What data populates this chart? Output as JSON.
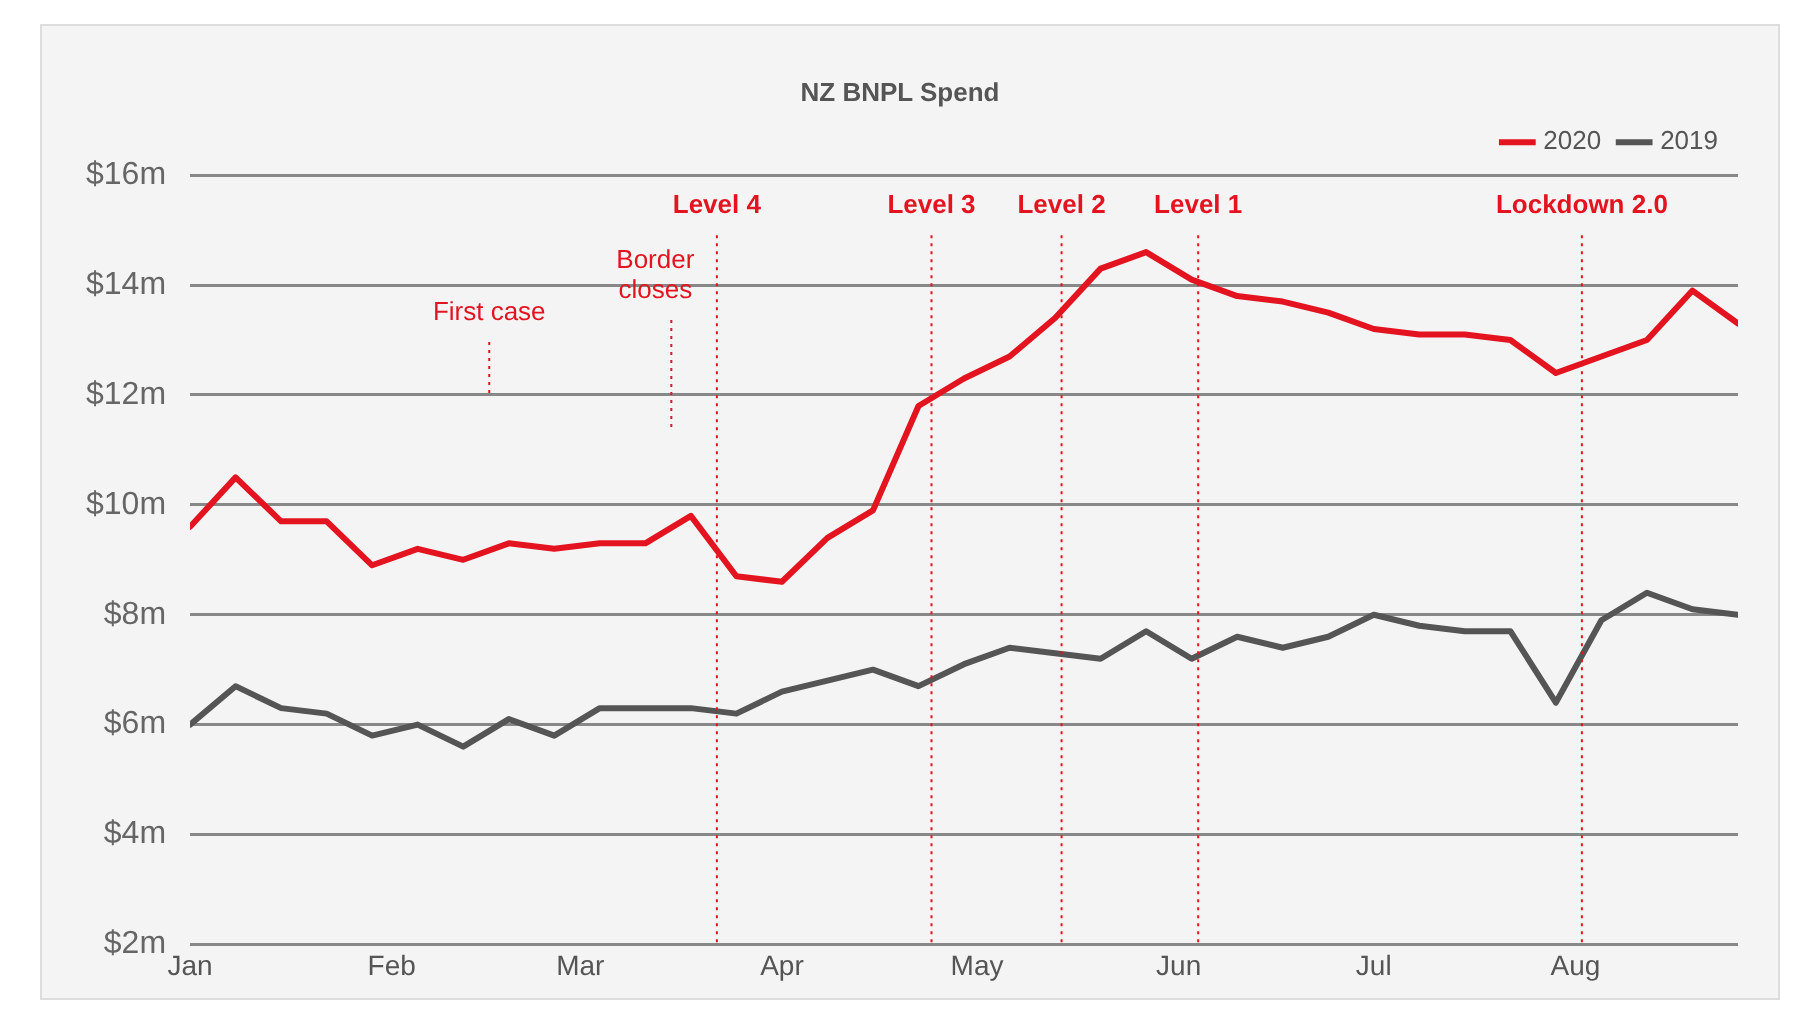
{
  "chart_data": {
    "type": "line",
    "title": "NZ BNPL Spend",
    "x": [
      "--01-01",
      "--01-08",
      "--01-15",
      "--01-22",
      "--01-29",
      "--02-05",
      "--02-12",
      "--02-19",
      "--02-26",
      "--03-04",
      "--03-11",
      "--03-18",
      "--03-25",
      "--04-01",
      "--04-08",
      "--04-15",
      "--04-22",
      "--04-29",
      "--05-06",
      "--05-13",
      "--05-20",
      "--05-27",
      "--06-03",
      "--06-10",
      "--06-17",
      "--06-24",
      "--07-01",
      "--07-08",
      "--07-15",
      "--07-22",
      "--07-29",
      "--08-05",
      "--08-12",
      "--08-19",
      "--08-26"
    ],
    "series": [
      {
        "name": "2020",
        "color": "#e3141f",
        "values": [
          9.6,
          10.5,
          9.7,
          9.7,
          8.9,
          9.2,
          9.0,
          9.3,
          9.2,
          9.3,
          9.3,
          9.8,
          8.7,
          8.6,
          9.4,
          9.9,
          11.8,
          12.3,
          12.7,
          13.4,
          14.3,
          14.6,
          14.1,
          13.8,
          13.7,
          13.5,
          13.2,
          13.1,
          13.1,
          13.0,
          12.4,
          12.7,
          13.0,
          13.9,
          13.3
        ]
      },
      {
        "name": "2019",
        "color": "#555555",
        "values": [
          6.0,
          6.7,
          6.3,
          6.2,
          5.8,
          6.0,
          5.6,
          6.1,
          5.8,
          6.3,
          6.3,
          6.3,
          6.2,
          6.6,
          6.8,
          7.0,
          6.7,
          7.1,
          7.4,
          7.3,
          7.2,
          7.7,
          7.2,
          7.6,
          7.4,
          7.6,
          8.0,
          7.8,
          7.7,
          7.7,
          6.4,
          7.9,
          8.4,
          8.1,
          8.0
        ]
      }
    ],
    "xlim": [
      "--01-01",
      "--08-26"
    ],
    "xticks": [
      {
        "value": "--01-01",
        "label": "Jan"
      },
      {
        "value": "--02-01",
        "label": "Feb"
      },
      {
        "value": "--03-01",
        "label": "Mar"
      },
      {
        "value": "--04-01",
        "label": "Apr"
      },
      {
        "value": "--05-01",
        "label": "May"
      },
      {
        "value": "--06-01",
        "label": "Jun"
      },
      {
        "value": "--07-01",
        "label": "Jul"
      },
      {
        "value": "--08-01",
        "label": "Aug"
      }
    ],
    "ylim": [
      2,
      16
    ],
    "yticks": [
      {
        "value": 2,
        "label": "$2m"
      },
      {
        "value": 4,
        "label": "$4m"
      },
      {
        "value": 6,
        "label": "$6m"
      },
      {
        "value": 8,
        "label": "$8m"
      },
      {
        "value": 10,
        "label": "$10m"
      },
      {
        "value": 12,
        "label": "$12m"
      },
      {
        "value": 14,
        "label": "$14m"
      },
      {
        "value": 16,
        "label": "$16m"
      }
    ],
    "ref_lines": [
      {
        "axis": "x",
        "value": "--02-16",
        "label": "First case",
        "color": "#e3141f",
        "line_style": "dotted"
      },
      {
        "axis": "x",
        "value": "--03-15",
        "label": "Border closes",
        "color": "#e3141f",
        "line_style": "dotted"
      },
      {
        "axis": "x",
        "value": "--03-22",
        "label": "Level 4",
        "color": "#e3141f",
        "line_style": "dotted"
      },
      {
        "axis": "x",
        "value": "--04-24",
        "label": "Level 3",
        "color": "#e3141f",
        "line_style": "dotted"
      },
      {
        "axis": "x",
        "value": "--05-14",
        "label": "Level 2",
        "color": "#e3141f",
        "line_style": "dotted"
      },
      {
        "axis": "x",
        "value": "--06-04",
        "label": "Level 1",
        "color": "#e3141f",
        "line_style": "dotted"
      },
      {
        "axis": "x",
        "value": "--08-02",
        "label": "Lockdown 2.0",
        "color": "#e3141f",
        "line_style": "dotted"
      }
    ],
    "grid": "y",
    "legend": "top right",
    "marker": "none",
    "line_style": "solid"
  }
}
